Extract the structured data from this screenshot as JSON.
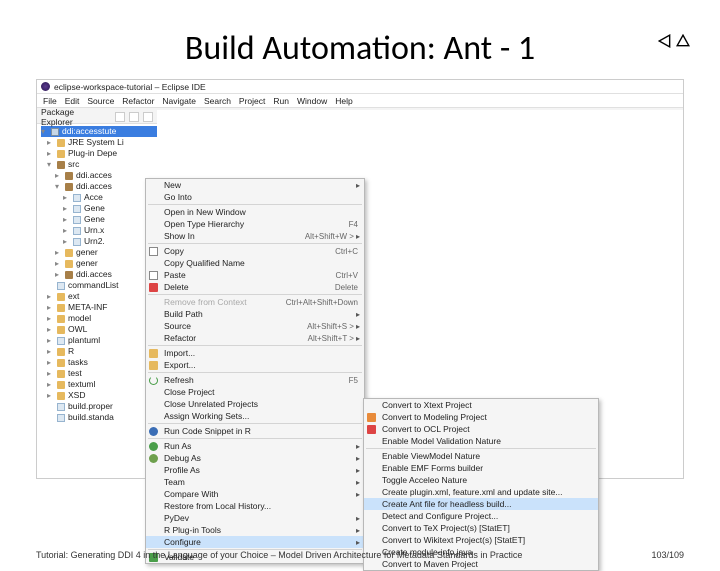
{
  "slide": {
    "title": "Build Automation: Ant - 1",
    "footer_left": "Tutorial: Generating DDI 4 in the Language of your Choice  –  Model Driven Architecture for Metadata Standards in Practice",
    "footer_right": "103/109"
  },
  "colors": {
    "highlight_bg": "#cae2fb",
    "selection_bg": "#3a7de0",
    "menu_bg": "#f5f5f5",
    "menu_border": "#b8b8b8"
  },
  "eclipse": {
    "title": "eclipse-workspace-tutorial – Eclipse IDE",
    "menubar": [
      "File",
      "Edit",
      "Source",
      "Refactor",
      "Navigate",
      "Search",
      "Project",
      "Run",
      "Window",
      "Help"
    ],
    "explorer_label": "Package Explorer"
  },
  "tree": [
    {
      "lvl": 0,
      "icon": "proj",
      "label": "ddi:accesstute",
      "sel": true,
      "caret": "v"
    },
    {
      "lvl": 1,
      "icon": "folder",
      "label": "JRE System Li",
      "caret": ">"
    },
    {
      "lvl": 1,
      "icon": "folder",
      "label": "Plug-in Depe",
      "caret": ">"
    },
    {
      "lvl": 1,
      "icon": "pkg",
      "label": "src",
      "caret": "v"
    },
    {
      "lvl": 2,
      "icon": "pkg",
      "label": "ddi.acces",
      "caret": ">"
    },
    {
      "lvl": 2,
      "icon": "pkg",
      "label": "ddi.acces",
      "caret": "v"
    },
    {
      "lvl": 3,
      "icon": "file",
      "label": "Acce",
      "caret": ">"
    },
    {
      "lvl": 3,
      "icon": "file",
      "label": "Gene",
      "caret": ">"
    },
    {
      "lvl": 3,
      "icon": "file",
      "label": "Gene",
      "caret": ">"
    },
    {
      "lvl": 3,
      "icon": "file",
      "label": "Urn.x",
      "caret": ">"
    },
    {
      "lvl": 3,
      "icon": "file",
      "label": "Urn2.",
      "caret": ">"
    },
    {
      "lvl": 2,
      "icon": "folder",
      "label": "gener",
      "caret": ">"
    },
    {
      "lvl": 2,
      "icon": "folder",
      "label": "gener",
      "caret": ">"
    },
    {
      "lvl": 2,
      "icon": "pkg",
      "label": "ddi.acces",
      "caret": ">"
    },
    {
      "lvl": 1,
      "icon": "file",
      "label": "commandList"
    },
    {
      "lvl": 1,
      "icon": "folder",
      "label": "ext",
      "caret": ">"
    },
    {
      "lvl": 1,
      "icon": "folder",
      "label": "META-INF",
      "caret": ">"
    },
    {
      "lvl": 1,
      "icon": "folder",
      "label": "model",
      "caret": ">"
    },
    {
      "lvl": 1,
      "icon": "folder",
      "label": "OWL",
      "caret": ">"
    },
    {
      "lvl": 1,
      "icon": "file",
      "label": "plantuml",
      "caret": ">"
    },
    {
      "lvl": 1,
      "icon": "folder",
      "label": "R",
      "caret": ">"
    },
    {
      "lvl": 1,
      "icon": "folder",
      "label": "tasks",
      "caret": ">"
    },
    {
      "lvl": 1,
      "icon": "folder",
      "label": "test",
      "caret": ">"
    },
    {
      "lvl": 1,
      "icon": "folder",
      "label": "textuml",
      "caret": ">"
    },
    {
      "lvl": 1,
      "icon": "folder",
      "label": "XSD",
      "caret": ">"
    },
    {
      "lvl": 1,
      "icon": "file",
      "label": "build.proper"
    },
    {
      "lvl": 1,
      "icon": "file",
      "label": "build.standa"
    }
  ],
  "context_menu": [
    {
      "label": "New",
      "arrow": true
    },
    {
      "label": "Go Into"
    },
    {
      "sep": true
    },
    {
      "label": "Open in New Window"
    },
    {
      "label": "Open Type Hierarchy",
      "shortcut": "F4"
    },
    {
      "label": "Show In",
      "shortcut": "Alt+Shift+W >",
      "arrow": true
    },
    {
      "sep": true
    },
    {
      "label": "Copy",
      "shortcut": "Ctrl+C",
      "icon": "copy"
    },
    {
      "label": "Copy Qualified Name"
    },
    {
      "label": "Paste",
      "shortcut": "Ctrl+V",
      "icon": "paste"
    },
    {
      "label": "Delete",
      "shortcut": "Delete",
      "icon": "delete"
    },
    {
      "sep": true
    },
    {
      "label": "Remove from Context",
      "shortcut": "Ctrl+Alt+Shift+Down",
      "disabled": true
    },
    {
      "label": "Build Path",
      "arrow": true
    },
    {
      "label": "Source",
      "shortcut": "Alt+Shift+S >",
      "arrow": true
    },
    {
      "label": "Refactor",
      "shortcut": "Alt+Shift+T >",
      "arrow": true
    },
    {
      "sep": true
    },
    {
      "label": "Import...",
      "icon": "import"
    },
    {
      "label": "Export...",
      "icon": "export"
    },
    {
      "sep": true
    },
    {
      "label": "Refresh",
      "shortcut": "F5",
      "icon": "refresh"
    },
    {
      "label": "Close Project"
    },
    {
      "label": "Close Unrelated Projects"
    },
    {
      "label": "Assign Working Sets..."
    },
    {
      "sep": true
    },
    {
      "label": "Run Code Snippet in R",
      "icon": "r"
    },
    {
      "sep": true
    },
    {
      "label": "Run As",
      "arrow": true,
      "icon": "run"
    },
    {
      "label": "Debug As",
      "arrow": true,
      "icon": "debug"
    },
    {
      "label": "Profile As",
      "arrow": true
    },
    {
      "label": "Team",
      "arrow": true
    },
    {
      "label": "Compare With",
      "arrow": true
    },
    {
      "label": "Restore from Local History..."
    },
    {
      "label": "PyDev",
      "arrow": true
    },
    {
      "label": "R Plug-in Tools",
      "arrow": true
    },
    {
      "label": "Configure",
      "arrow": true,
      "hover": true
    },
    {
      "sep": true
    },
    {
      "label": "Validate",
      "icon": "validate"
    }
  ],
  "submenu": [
    {
      "label": "Convert to Xtext Project"
    },
    {
      "label": "Convert to Modeling Project",
      "icon": "m"
    },
    {
      "label": "Convert to OCL Project",
      "icon": "ocl"
    },
    {
      "label": "Enable Model Validation Nature"
    },
    {
      "sep": true
    },
    {
      "label": "Enable ViewModel Nature"
    },
    {
      "label": "Enable EMF Forms builder"
    },
    {
      "label": "Toggle Acceleo Nature"
    },
    {
      "label": "Create plugin.xml, feature.xml and update site..."
    },
    {
      "label": "Create Ant file for headless build...",
      "hover": true
    },
    {
      "label": "Detect and Configure Project..."
    },
    {
      "label": "Convert to TeX Project(s) [StatET]"
    },
    {
      "label": "Convert to Wikitext Project(s) [StatET]"
    },
    {
      "label": "Create module-info.java"
    },
    {
      "label": "Convert to Maven Project"
    }
  ]
}
